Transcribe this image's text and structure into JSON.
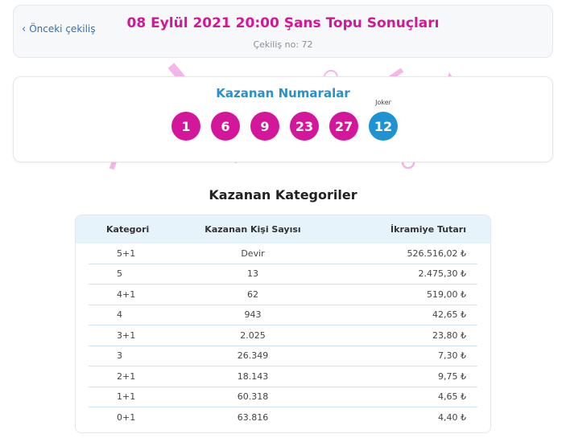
{
  "header": {
    "prev_label": "Önceki çekiliş",
    "title": "08 Eylül 2021 20:00 Şans Topu Sonuçları",
    "draw_number": "Çekiliş no: 72"
  },
  "winning_numbers": {
    "title": "Kazanan Numaralar",
    "numbers": [
      "1",
      "6",
      "9",
      "23",
      "27"
    ],
    "joker_label": "Joker",
    "joker": "12",
    "colors": {
      "ball": "#d4169a",
      "joker": "#1f93d2"
    }
  },
  "categories": {
    "title": "Kazanan Kategoriler",
    "headers": [
      "Kategori",
      "Kazanan Kişi Sayısı",
      "İkramiye Tutarı"
    ],
    "rows": [
      [
        "5+1",
        "Devir",
        "526.516,02 ₺"
      ],
      [
        "5",
        "13",
        "2.475,30 ₺"
      ],
      [
        "4+1",
        "62",
        "519,00 ₺"
      ],
      [
        "4",
        "943",
        "42,65 ₺"
      ],
      [
        "3+1",
        "2.025",
        "23,80 ₺"
      ],
      [
        "3",
        "26.349",
        "7,30 ₺"
      ],
      [
        "2+1",
        "18.143",
        "9,75 ₺"
      ],
      [
        "1+1",
        "60.318",
        "4,65 ₺"
      ],
      [
        "0+1",
        "63.816",
        "4,40 ₺"
      ]
    ]
  }
}
